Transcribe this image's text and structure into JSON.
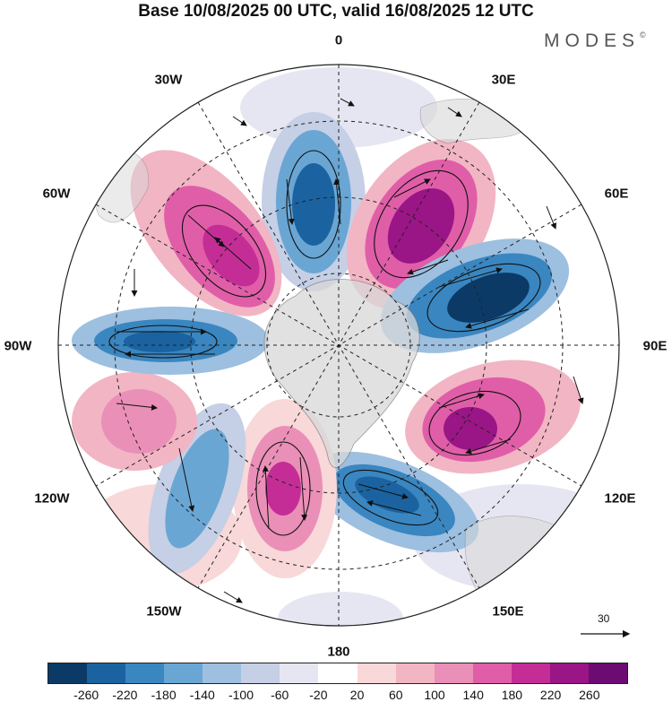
{
  "title": "Base 10/08/2025 00 UTC, valid 16/08/2025 12 UTC",
  "brand": "MODES",
  "brand_mark": "©",
  "longitude_labels": {
    "lon_0": "0",
    "lon_30e": "30E",
    "lon_60e": "60E",
    "lon_90e": "90E",
    "lon_120e": "120E",
    "lon_150e": "150E",
    "lon_180": "180",
    "lon_150w": "150W",
    "lon_120w": "120W",
    "lon_90w": "90W",
    "lon_60w": "60W",
    "lon_30w": "30W"
  },
  "reference_vector": {
    "value": "30"
  },
  "colorbar": {
    "colors": [
      "#0b3a66",
      "#1a63a0",
      "#3a86c0",
      "#6aa6d3",
      "#9dbfe0",
      "#c5cfe6",
      "#e6e6f2",
      "#ffffff",
      "#f8d8d8",
      "#f2b5c4",
      "#ea8fb7",
      "#e05ea8",
      "#c42d96",
      "#9a1585",
      "#6c0c72"
    ],
    "labels": [
      "-260",
      "-220",
      "-180",
      "-140",
      "-100",
      "-60",
      "-20",
      "20",
      "60",
      "100",
      "140",
      "180",
      "220",
      "260"
    ]
  },
  "chart_data": {
    "type": "polar-stereographic anomaly map",
    "projection": "south polar stereographic",
    "field": "geopotential height anomaly with wind vectors",
    "levels": [
      -260,
      -220,
      -180,
      -140,
      -100,
      -60,
      -20,
      20,
      60,
      100,
      140,
      180,
      220,
      260
    ],
    "anomaly_centers": [
      {
        "name": "blue-0",
        "lon": "0",
        "sign": "negative",
        "peak": -220
      },
      {
        "name": "pink-30e",
        "lon": "30E",
        "sign": "positive",
        "peak": 260
      },
      {
        "name": "blue-70e",
        "lon": "70E",
        "sign": "negative",
        "peak": -260
      },
      {
        "name": "pink-110e",
        "lon": "110E",
        "sign": "positive",
        "peak": 220
      },
      {
        "name": "blue-160e",
        "lon": "160E",
        "sign": "negative",
        "peak": -220
      },
      {
        "name": "pink-160w",
        "lon": "160W",
        "sign": "positive",
        "peak": 220
      },
      {
        "name": "blue-140w",
        "lon": "140W",
        "sign": "negative",
        "peak": -140
      },
      {
        "name": "pink-120w",
        "lon": "120W",
        "sign": "positive",
        "peak": 140
      },
      {
        "name": "blue-85w",
        "lon": "85W",
        "sign": "negative",
        "peak": -220
      },
      {
        "name": "pink-50w",
        "lon": "50W",
        "sign": "positive",
        "peak": 260
      }
    ]
  }
}
